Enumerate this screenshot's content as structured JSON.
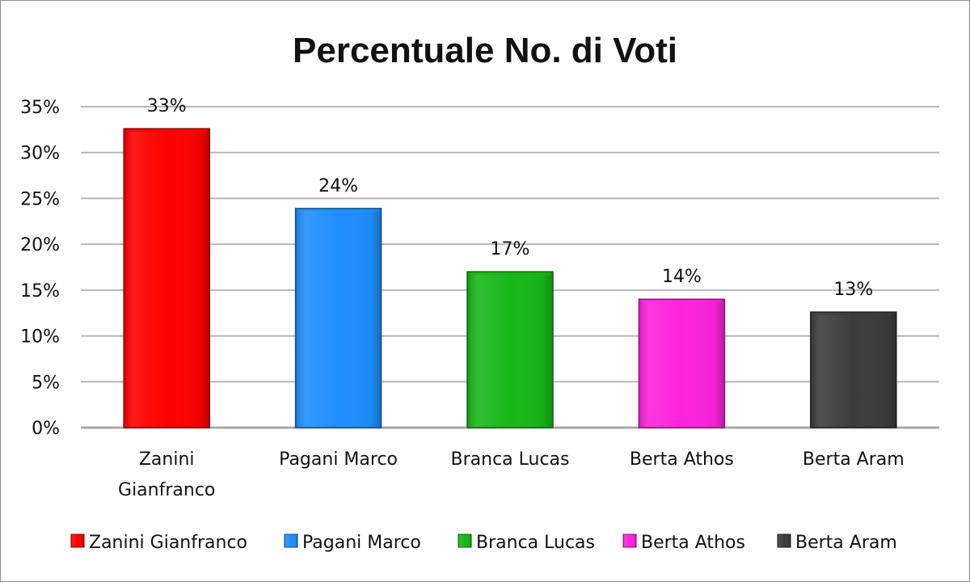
{
  "chart_data": {
    "type": "bar",
    "title": "Percentuale No. di Voti",
    "xlabel": "",
    "ylabel": "",
    "categories": [
      "Zanini Gianfranco",
      "Pagani Marco",
      "Branca Lucas",
      "Berta Athos",
      "Berta Aram"
    ],
    "category_lines": [
      [
        "Zanini",
        "Gianfranco"
      ],
      [
        "Pagani Marco"
      ],
      [
        "Branca Lucas"
      ],
      [
        "Berta Athos"
      ],
      [
        "Berta Aram"
      ]
    ],
    "values": [
      32.6,
      23.9,
      17.0,
      14.0,
      12.6
    ],
    "data_labels": [
      "33%",
      "24%",
      "17%",
      "14%",
      "13%"
    ],
    "colors": [
      "#ff0000",
      "#1f8fff",
      "#18b818",
      "#ff22dd",
      "#3c3c3c"
    ],
    "ylim": [
      0,
      35
    ],
    "yticks": [
      0,
      5,
      10,
      15,
      20,
      25,
      30,
      35
    ],
    "ytick_labels": [
      "0%",
      "5%",
      "10%",
      "15%",
      "20%",
      "25%",
      "30%",
      "35%"
    ],
    "grid": true,
    "legend": {
      "position": "bottom",
      "entries": [
        "Zanini Gianfranco",
        "Pagani Marco",
        "Branca Lucas",
        "Berta Athos",
        "Berta Aram"
      ]
    }
  }
}
